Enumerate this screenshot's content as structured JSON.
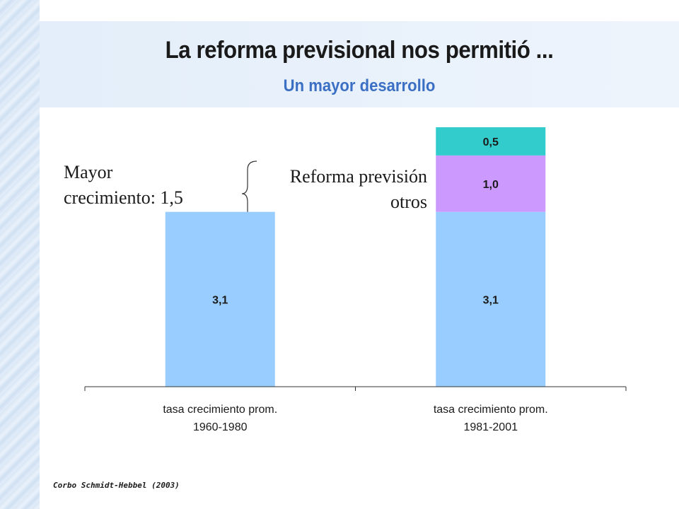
{
  "slide": {
    "title": "La reforma previsional nos permitió ...",
    "subtitle": "Un mayor desarrollo",
    "annotation_left": [
      "Mayor",
      "crecimiento: 1,5"
    ],
    "annotation_right": [
      "Reforma previsión",
      "otros"
    ],
    "source": "Corbo Schmidt-Hebbel (2003)"
  },
  "colors": {
    "base": "#99ccff",
    "reforma": "#cc99ff",
    "otros": "#33cccc",
    "subtitle": "#3b6fc4"
  },
  "chart_data": {
    "type": "bar",
    "stacked": true,
    "categories": [
      [
        "tasa crecimiento prom.",
        "1960-1980"
      ],
      [
        "tasa crecimiento prom.",
        "1981-2001"
      ]
    ],
    "series": [
      {
        "values": [
          3.1,
          3.1
        ],
        "labels": [
          "3,1",
          "3,1"
        ],
        "color": "#99ccff"
      },
      {
        "values": [
          0,
          1.0
        ],
        "labels": [
          "",
          "1,0"
        ],
        "color": "#cc99ff"
      },
      {
        "values": [
          0,
          0.5
        ],
        "labels": [
          "",
          "0,5"
        ],
        "color": "#33cccc"
      }
    ],
    "ylim": [
      0,
      4.6
    ],
    "grid": false
  }
}
